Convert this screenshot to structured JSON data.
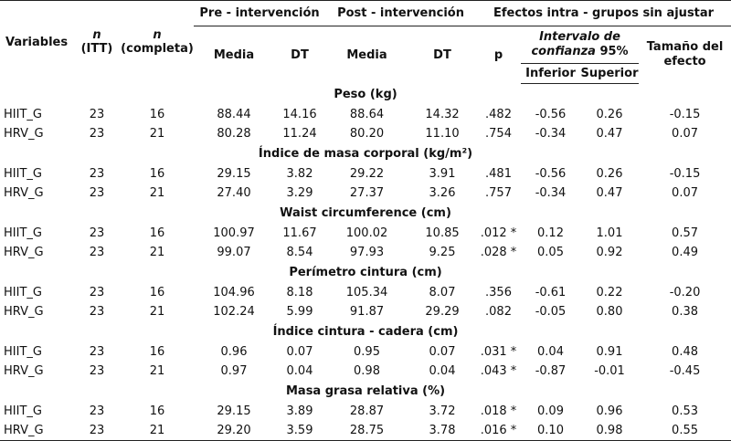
{
  "header": {
    "variables": "Variables",
    "n_itt_letter": "n",
    "n_itt_sub": "(ITT)",
    "n_comp_letter": "n",
    "n_comp_sub": "(completa)",
    "pre": "Pre - intervención",
    "post": "Post - intervención",
    "effects": "Efectos intra - grupos sin ajustar",
    "media": "Media",
    "dt": "DT",
    "p": "p",
    "ci_line1": "Intervalo de",
    "ci_line2": "confianza",
    "ci_pct": " 95%",
    "effect_size_line1": "Tamaño del",
    "effect_size_line2": "efecto",
    "inferior": "Inferior",
    "superior": "Superior"
  },
  "sections": [
    {
      "title": "Peso (kg)",
      "rows": [
        {
          "group": "HIIT_G",
          "n_itt": "23",
          "n_comp": "16",
          "pre_mean": "88.44",
          "pre_sd": "14.16",
          "post_mean": "88.64",
          "post_sd": "14.32",
          "p": ".482",
          "lower": "-0.56",
          "upper": "0.26",
          "effect": "-0.15"
        },
        {
          "group": "HRV_G",
          "n_itt": "23",
          "n_comp": "21",
          "pre_mean": "80.28",
          "pre_sd": "11.24",
          "post_mean": "80.20",
          "post_sd": "11.10",
          "p": ".754",
          "lower": "-0.34",
          "upper": "0.47",
          "effect": "0.07"
        }
      ]
    },
    {
      "title": "Índice de masa corporal (kg/m²)",
      "rows": [
        {
          "group": "HIIT_G",
          "n_itt": "23",
          "n_comp": "16",
          "pre_mean": "29.15",
          "pre_sd": "3.82",
          "post_mean": "29.22",
          "post_sd": "3.91",
          "p": ".481",
          "lower": "-0.56",
          "upper": "0.26",
          "effect": "-0.15"
        },
        {
          "group": "HRV_G",
          "n_itt": "23",
          "n_comp": "21",
          "pre_mean": "27.40",
          "pre_sd": "3.29",
          "post_mean": "27.37",
          "post_sd": "3.26",
          "p": ".757",
          "lower": "-0.34",
          "upper": "0.47",
          "effect": "0.07"
        }
      ]
    },
    {
      "title": "Waist circumference (cm)",
      "rows": [
        {
          "group": "HIIT_G",
          "n_itt": "23",
          "n_comp": "16",
          "pre_mean": "100.97",
          "pre_sd": "11.67",
          "post_mean": "100.02",
          "post_sd": "10.85",
          "p": ".012 *",
          "lower": "0.12",
          "upper": "1.01",
          "effect": "0.57"
        },
        {
          "group": "HRV_G",
          "n_itt": "23",
          "n_comp": "21",
          "pre_mean": "99.07",
          "pre_sd": "8.54",
          "post_mean": "97.93",
          "post_sd": "9.25",
          "p": ".028 *",
          "lower": "0.05",
          "upper": "0.92",
          "effect": "0.49"
        }
      ]
    },
    {
      "title": "Perímetro cintura (cm)",
      "rows": [
        {
          "group": "HIIT_G",
          "n_itt": "23",
          "n_comp": "16",
          "pre_mean": "104.96",
          "pre_sd": "8.18",
          "post_mean": "105.34",
          "post_sd": "8.07",
          "p": ".356",
          "lower": "-0.61",
          "upper": "0.22",
          "effect": "-0.20"
        },
        {
          "group": "HRV_G",
          "n_itt": "23",
          "n_comp": "21",
          "pre_mean": "102.24",
          "pre_sd": "5.99",
          "post_mean": "91.87",
          "post_sd": "29.29",
          "p": ".082",
          "lower": "-0.05",
          "upper": "0.80",
          "effect": "0.38"
        }
      ]
    },
    {
      "title": "Índice cintura - cadera (cm)",
      "rows": [
        {
          "group": "HIIT_G",
          "n_itt": "23",
          "n_comp": "16",
          "pre_mean": "0.96",
          "pre_sd": "0.07",
          "post_mean": "0.95",
          "post_sd": "0.07",
          "p": ".031 *",
          "lower": "0.04",
          "upper": "0.91",
          "effect": "0.48"
        },
        {
          "group": "HRV_G",
          "n_itt": "23",
          "n_comp": "21",
          "pre_mean": "0.97",
          "pre_sd": "0.04",
          "post_mean": "0.98",
          "post_sd": "0.04",
          "p": ".043 *",
          "lower": "-0.87",
          "upper": "-0.01",
          "effect": "-0.45"
        }
      ]
    },
    {
      "title": "Masa grasa relativa (%)",
      "rows": [
        {
          "group": "HIIT_G",
          "n_itt": "23",
          "n_comp": "16",
          "pre_mean": "29.15",
          "pre_sd": "3.89",
          "post_mean": "28.87",
          "post_sd": "3.72",
          "p": ".018 *",
          "lower": "0.09",
          "upper": "0.96",
          "effect": "0.53"
        },
        {
          "group": "HRV_G",
          "n_itt": "23",
          "n_comp": "21",
          "pre_mean": "29.20",
          "pre_sd": "3.59",
          "post_mean": "28.75",
          "post_sd": "3.78",
          "p": ".016 *",
          "lower": "0.10",
          "upper": "0.98",
          "effect": "0.55"
        }
      ]
    }
  ]
}
